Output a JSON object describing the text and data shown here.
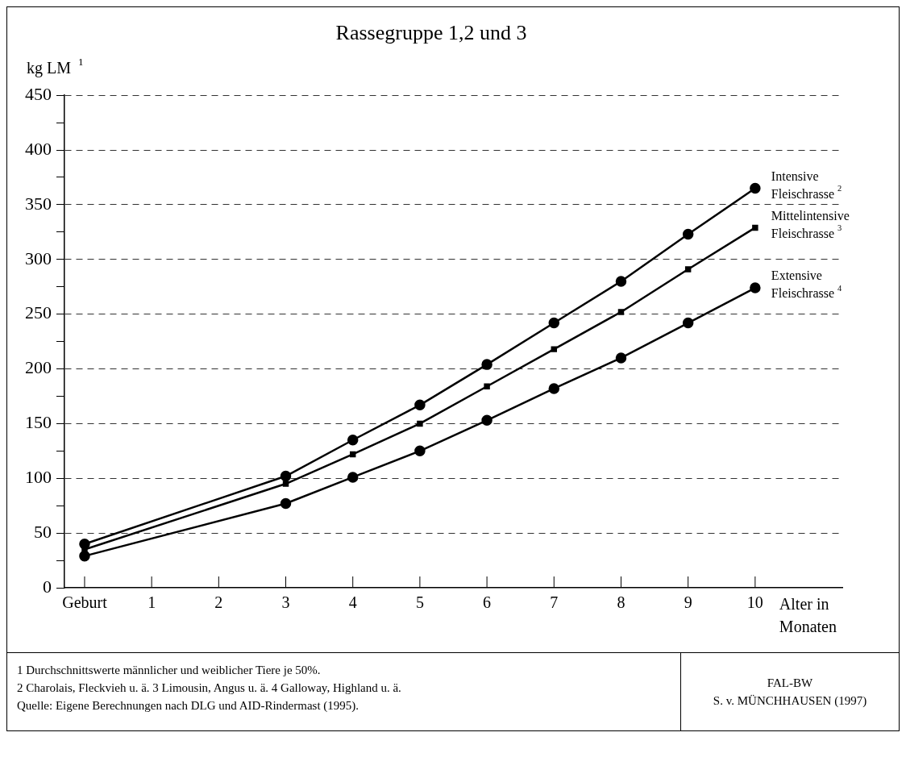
{
  "chart_data": {
    "type": "line",
    "title": "Rassegruppe 1,2 und 3",
    "ylabel": "kg LM $^{1}$",
    "xlabel": "Alter in Monaten",
    "x": [
      0,
      3,
      4,
      5,
      6,
      7,
      8,
      9,
      10
    ],
    "series": [
      {
        "name": "Intensive Fleischrasse$^{2}$",
        "color": "#000000",
        "marker": "circle",
        "values": [
          40,
          102,
          135,
          167,
          204,
          242,
          280,
          323,
          365
        ]
      },
      {
        "name": "Mittelintensive Fleischrasse$^{3}$",
        "color": "#000000",
        "marker": "square",
        "values": [
          35,
          95,
          122,
          150,
          184,
          218,
          252,
          291,
          329
        ]
      },
      {
        "name": "Extensive Fleischrasse$^{4}$",
        "color": "#000000",
        "marker": "circle",
        "values": [
          29,
          77,
          101,
          125,
          153,
          182,
          210,
          242,
          274
        ]
      }
    ],
    "xlim": [
      -0.3,
      11.3
    ],
    "xticks": [
      {
        "value": 0,
        "label": "Geburt"
      },
      1,
      2,
      3,
      4,
      5,
      6,
      7,
      8,
      9,
      10
    ],
    "ylim": [
      0,
      450
    ],
    "yticks": [
      0,
      {
        "value": 25,
        "label": null
      },
      50,
      {
        "value": 75,
        "label": null
      },
      100,
      {
        "value": 125,
        "label": null
      },
      150,
      {
        "value": 175,
        "label": null
      },
      200,
      {
        "value": 225,
        "label": null
      },
      250,
      {
        "value": 275,
        "label": null
      },
      300,
      {
        "value": 325,
        "label": null
      },
      350,
      {
        "value": 375,
        "label": null
      },
      400,
      {
        "value": 425,
        "label": null
      },
      450
    ],
    "grid": "y",
    "line_style": "solid",
    "legend": false,
    "annotations": [
      "1 Durchschnittswerte männlicher und weiblicher Tiere je 50%.",
      "2 Charolais, Fleckvieh u. ä.   3 Limousin, Angus u. ä.   4 Galloway, Highland u. ä.",
      "Quelle: Eigene Berechnungen nach DLG und AID-Rindermast (1995).",
      "FAL-BW",
      "S. v. MÜNCHHAUSEN (1997)"
    ]
  }
}
